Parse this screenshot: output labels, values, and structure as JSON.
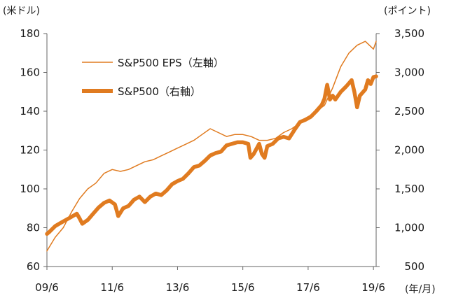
{
  "chart_data": {
    "type": "line",
    "left_unit": "(米ドル)",
    "right_unit": "(ポイント)",
    "x_unit": "(年/月)",
    "x_ticks": [
      "09/6",
      "11/6",
      "13/6",
      "15/6",
      "17/6",
      "19/6"
    ],
    "x_tick_pos": [
      2009.4167,
      2011.4167,
      2013.4167,
      2015.4167,
      2017.4167,
      2019.4167
    ],
    "xlim": [
      2009.4167,
      2019.5
    ],
    "left_axis": {
      "ylim": [
        60,
        180
      ],
      "ticks": [
        "60",
        "80",
        "100",
        "120",
        "140",
        "160",
        "180"
      ],
      "tick_values": [
        60,
        80,
        100,
        120,
        140,
        160,
        180
      ]
    },
    "right_axis": {
      "ylim": [
        500,
        3500
      ],
      "ticks": [
        "500",
        "1,000",
        "1,500",
        "2,000",
        "2,500",
        "3,000",
        "3,500"
      ],
      "tick_values": [
        500,
        1000,
        1500,
        2000,
        2500,
        3000,
        3500
      ]
    },
    "colors": {
      "series": "#e07b20",
      "axis": "#666666"
    },
    "series": [
      {
        "name": "S&P500 EPS（左軸）",
        "axis": "left",
        "x": [
          2009.4167,
          2009.6667,
          2009.9167,
          2010.1667,
          2010.4167,
          2010.6667,
          2010.9167,
          2011.1667,
          2011.4167,
          2011.6667,
          2011.9167,
          2012.1667,
          2012.4167,
          2012.6667,
          2012.9167,
          2013.1667,
          2013.4167,
          2013.6667,
          2013.9167,
          2014.1667,
          2014.4167,
          2014.6667,
          2014.9167,
          2015.1667,
          2015.4167,
          2015.6667,
          2015.9167,
          2016.1667,
          2016.4167,
          2016.6667,
          2016.9167,
          2017.1667,
          2017.4167,
          2017.6667,
          2017.9167,
          2018.1667,
          2018.4167,
          2018.6667,
          2018.9167,
          2019.1667,
          2019.4167,
          2019.5
        ],
        "values": [
          68,
          75,
          80,
          88,
          95,
          100,
          103,
          108,
          110,
          109,
          110,
          112,
          114,
          115,
          117,
          119,
          121,
          123,
          125,
          128,
          131,
          129,
          127,
          128,
          128,
          127,
          125,
          125,
          126,
          129,
          131,
          134,
          137,
          140,
          143,
          152,
          163,
          170,
          174,
          176,
          172,
          176
        ]
      },
      {
        "name": "S&P500（右軸）",
        "axis": "right",
        "x": [
          2009.4167,
          2009.5,
          2009.6667,
          2009.8333,
          2010.0,
          2010.1667,
          2010.3333,
          2010.4167,
          2010.5,
          2010.6667,
          2010.8333,
          2011.0,
          2011.1667,
          2011.3333,
          2011.5,
          2011.6,
          2011.75,
          2011.9167,
          2012.0833,
          2012.25,
          2012.4167,
          2012.5833,
          2012.75,
          2012.9167,
          2013.0833,
          2013.25,
          2013.4167,
          2013.5833,
          2013.75,
          2013.9167,
          2014.0833,
          2014.25,
          2014.4167,
          2014.5833,
          2014.75,
          2014.9167,
          2015.0833,
          2015.25,
          2015.4167,
          2015.5833,
          2015.65,
          2015.75,
          2015.9167,
          2016.0,
          2016.0833,
          2016.1667,
          2016.3333,
          2016.5,
          2016.6667,
          2016.8333,
          2017.0,
          2017.1667,
          2017.3333,
          2017.5,
          2017.6667,
          2017.8333,
          2017.9167,
          2018.0,
          2018.0833,
          2018.1667,
          2018.25,
          2018.4167,
          2018.5833,
          2018.75,
          2018.8333,
          2018.9167,
          2019.0,
          2019.1667,
          2019.25,
          2019.3333,
          2019.4167,
          2019.5
        ],
        "values": [
          920,
          950,
          1020,
          1060,
          1100,
          1140,
          1180,
          1120,
          1050,
          1100,
          1180,
          1260,
          1320,
          1350,
          1300,
          1150,
          1250,
          1280,
          1360,
          1400,
          1330,
          1400,
          1440,
          1420,
          1480,
          1560,
          1600,
          1630,
          1700,
          1780,
          1800,
          1860,
          1930,
          1960,
          1980,
          2060,
          2080,
          2100,
          2100,
          2080,
          1900,
          1950,
          2080,
          1950,
          1900,
          2050,
          2080,
          2150,
          2170,
          2150,
          2260,
          2360,
          2390,
          2430,
          2500,
          2580,
          2660,
          2840,
          2650,
          2700,
          2650,
          2750,
          2820,
          2900,
          2750,
          2550,
          2700,
          2780,
          2900,
          2850,
          2940,
          2950
        ]
      }
    ]
  }
}
